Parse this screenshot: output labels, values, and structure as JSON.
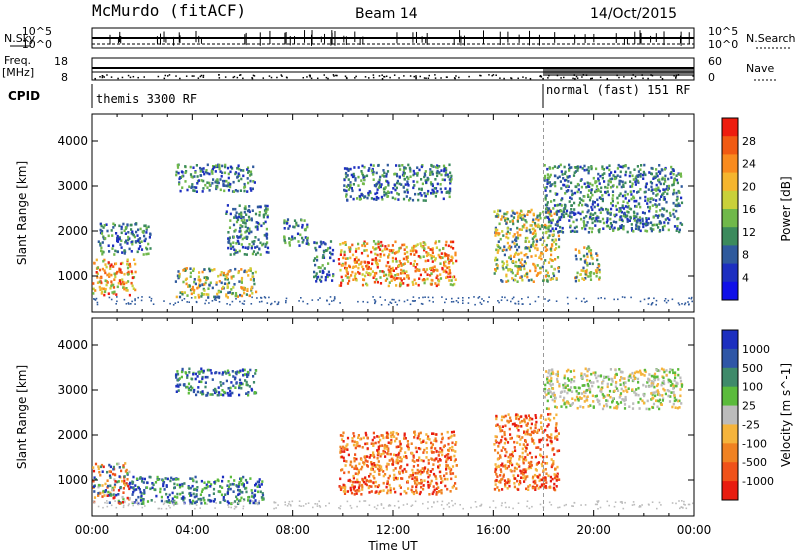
{
  "header": {
    "station": "McMurdo (fitACF)",
    "beam": "Beam 14",
    "date": "14/Oct/2015"
  },
  "top_panels": {
    "nsky_label": "N.Sky",
    "nsky_ticks": [
      "10^5",
      "10^0"
    ],
    "nsearch_label": "N.Search",
    "nsearch_ticks": [
      "10^5",
      "10^0"
    ],
    "freq_label": "Freq.",
    "freq_unit": "[MHz]",
    "freq_ticks": [
      "18",
      "8"
    ],
    "nave_label": "Nave",
    "nave_ticks": [
      "60",
      "0"
    ],
    "cpid_label": "CPID",
    "cpid_segments": [
      {
        "text": "themis 3300 RF",
        "start_hour": 0
      },
      {
        "text": "normal (fast) 151 RF",
        "start_hour": 18
      }
    ]
  },
  "chart_data": [
    {
      "type": "heatmap",
      "name": "power",
      "ylabel": "Slant Range [km]",
      "ylim": [
        200,
        4600
      ],
      "yticks": [
        1000,
        2000,
        3000,
        4000
      ],
      "xlim": [
        0,
        24
      ],
      "colorbar": {
        "label": "Power [dB]",
        "ticks": [
          "28",
          "24",
          "20",
          "16",
          "12",
          "8",
          "4"
        ],
        "colors": [
          "#ee1c0e",
          "#f15a12",
          "#f98b1e",
          "#f5b52e",
          "#c9d03a",
          "#70b84a",
          "#3b8a5c",
          "#2f5a9d",
          "#1d2fc0",
          "#1010e8"
        ]
      },
      "regions": [
        {
          "t0": 0.0,
          "t1": 1.7,
          "r0": 600,
          "r1": 1400,
          "level": "high"
        },
        {
          "t0": 0.2,
          "t1": 2.3,
          "r0": 1500,
          "r1": 2200,
          "level": "low"
        },
        {
          "t0": 3.3,
          "t1": 6.5,
          "r0": 550,
          "r1": 1200,
          "level": "mid"
        },
        {
          "t0": 3.3,
          "t1": 6.5,
          "r0": 2900,
          "r1": 3500,
          "level": "low"
        },
        {
          "t0": 5.3,
          "t1": 7.0,
          "r0": 1500,
          "r1": 2600,
          "level": "low"
        },
        {
          "t0": 7.6,
          "t1": 8.6,
          "r0": 1700,
          "r1": 2300,
          "level": "low"
        },
        {
          "t0": 8.8,
          "t1": 9.6,
          "r0": 900,
          "r1": 1800,
          "level": "low"
        },
        {
          "t0": 9.8,
          "t1": 14.5,
          "r0": 800,
          "r1": 1800,
          "level": "high"
        },
        {
          "t0": 10.0,
          "t1": 14.3,
          "r0": 2700,
          "r1": 3500,
          "level": "low"
        },
        {
          "t0": 16.0,
          "t1": 18.6,
          "r0": 900,
          "r1": 2500,
          "level": "mid"
        },
        {
          "t0": 18.0,
          "t1": 23.5,
          "r0": 2000,
          "r1": 3500,
          "level": "low"
        },
        {
          "t0": 19.2,
          "t1": 20.2,
          "r0": 900,
          "r1": 1700,
          "level": "mid"
        }
      ]
    },
    {
      "type": "heatmap",
      "name": "velocity",
      "ylabel": "Slant Range [km]",
      "xlabel": "Time UT",
      "ylim": [
        200,
        4600
      ],
      "yticks": [
        1000,
        2000,
        3000,
        4000
      ],
      "xlim": [
        0,
        24
      ],
      "xticks": [
        "00:00",
        "04:00",
        "08:00",
        "12:00",
        "16:00",
        "20:00",
        "00:00"
      ],
      "colorbar": {
        "label": "Velocity [m s^-1]",
        "ticks": [
          "1000",
          "500",
          "100",
          "25",
          "-25",
          "-100",
          "-500",
          "-1000"
        ],
        "colors": [
          "#1c2fbf",
          "#2f56a6",
          "#3f8a6a",
          "#5bbb3c",
          "#bcbcbc",
          "#f5b43c",
          "#f08222",
          "#f0521a",
          "#e81c10"
        ]
      },
      "regions": [
        {
          "t0": 0.0,
          "t1": 1.5,
          "r0": 500,
          "r1": 1400,
          "level": "mixed"
        },
        {
          "t0": 1.5,
          "t1": 6.8,
          "r0": 500,
          "r1": 1100,
          "level": "toward"
        },
        {
          "t0": 3.3,
          "t1": 6.5,
          "r0": 2900,
          "r1": 3500,
          "level": "toward"
        },
        {
          "t0": 9.8,
          "t1": 14.5,
          "r0": 700,
          "r1": 2100,
          "level": "away"
        },
        {
          "t0": 16.0,
          "t1": 18.6,
          "r0": 800,
          "r1": 2500,
          "level": "away"
        },
        {
          "t0": 18.0,
          "t1": 23.5,
          "r0": 2600,
          "r1": 3500,
          "level": "gray"
        }
      ]
    }
  ]
}
